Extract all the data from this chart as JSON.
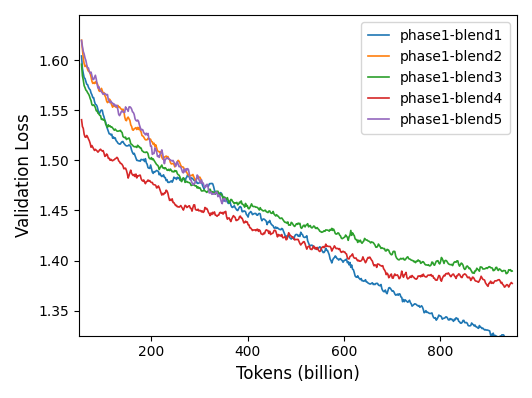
{
  "xlabel": "Tokens (billion)",
  "ylabel": "Validation Loss",
  "xlim": [
    50,
    960
  ],
  "ylim": [
    1.325,
    1.645
  ],
  "yticks": [
    1.35,
    1.4,
    1.45,
    1.5,
    1.55,
    1.6
  ],
  "xticks": [
    200,
    400,
    600,
    800
  ],
  "legend_labels": [
    "phase1-blend1",
    "phase1-blend2",
    "phase1-blend3",
    "phase1-blend4",
    "phase1-blend5"
  ],
  "line_colors": [
    "#1f77b4",
    "#ff7f0e",
    "#2ca02c",
    "#d62728",
    "#9467bd"
  ],
  "line_width": 1.2,
  "figsize": [
    5.32,
    3.98
  ],
  "dpi": 100
}
